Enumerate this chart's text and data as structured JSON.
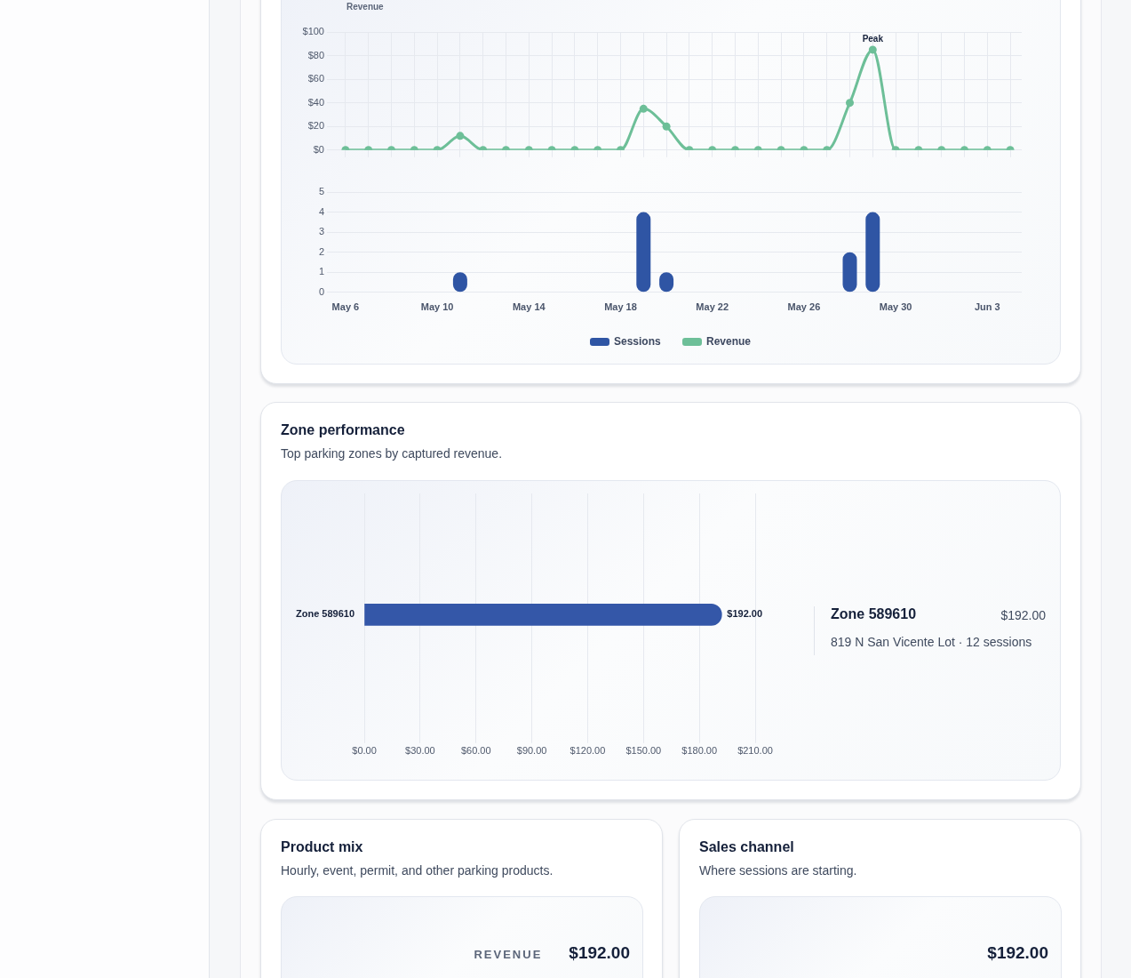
{
  "chart_data": [
    {
      "type": "line",
      "ylabel": "Revenue",
      "categories": [
        null,
        null,
        null,
        null,
        null,
        null,
        null,
        null,
        null,
        null,
        null,
        null,
        null,
        null,
        null,
        null,
        null,
        null,
        null,
        null,
        null,
        null,
        null,
        null,
        null,
        null,
        null,
        null,
        null,
        null
      ],
      "series": [
        {
          "name": "Revenue",
          "color": "#6dbf98",
          "values": [
            0,
            0,
            0,
            0,
            0,
            12,
            0,
            0,
            0,
            0,
            0,
            0,
            0,
            35,
            20,
            0,
            0,
            0,
            0,
            0,
            0,
            0,
            40,
            85,
            0,
            0,
            0,
            0,
            0,
            0
          ]
        }
      ],
      "ylim": [
        0,
        100
      ],
      "yticks": [
        {
          "value": 0,
          "label": "$0"
        },
        {
          "value": 20,
          "label": "$20"
        },
        {
          "value": 40,
          "label": "$40"
        },
        {
          "value": 60,
          "label": "$60"
        },
        {
          "value": 80,
          "label": "$80"
        },
        {
          "value": 100,
          "label": "$100"
        }
      ],
      "grid": true,
      "legend": "bottom",
      "marker": "circle",
      "annotations": [
        "Peak"
      ]
    },
    {
      "type": "bar",
      "categories": [
        "May 6",
        null,
        null,
        null,
        "May 10",
        null,
        null,
        null,
        "May 14",
        null,
        null,
        null,
        "May 18",
        null,
        null,
        null,
        "May 22",
        null,
        null,
        null,
        "May 26",
        null,
        null,
        null,
        "May 30",
        null,
        null,
        null,
        "Jun 3",
        null
      ],
      "series": [
        {
          "name": "Sessions",
          "color": "#2f55a4",
          "values": [
            0,
            0,
            0,
            0,
            0,
            1,
            0,
            0,
            0,
            0,
            0,
            0,
            0,
            4,
            1,
            0,
            0,
            0,
            0,
            0,
            0,
            0,
            2,
            4,
            0,
            0,
            0,
            0,
            0,
            0
          ]
        }
      ],
      "ylim": [
        0,
        5
      ],
      "yticks": [
        0,
        1,
        2,
        3,
        4,
        5
      ],
      "grid": "y",
      "legend": "bottom"
    },
    {
      "type": "bar",
      "orientation": "horizontal",
      "title": "Zone performance",
      "subtitle": "Top parking zones by captured revenue.",
      "categories": [
        "Zone 589610"
      ],
      "values": [
        192
      ],
      "color": "#3457a8",
      "xlim": [
        0,
        210
      ],
      "xticks": [
        {
          "value": 0,
          "label": "$0.00"
        },
        {
          "value": 30,
          "label": "$30.00"
        },
        {
          "value": 60,
          "label": "$60.00"
        },
        {
          "value": 90,
          "label": "$90.00"
        },
        {
          "value": 120,
          "label": "$120.00"
        },
        {
          "value": 150,
          "label": "$150.00"
        },
        {
          "value": 180,
          "label": "$180.00"
        },
        {
          "value": 210,
          "label": "$210.00"
        }
      ],
      "grid": "x",
      "value_labels": [
        "$192.00"
      ],
      "annotations": [
        "Zone 589610",
        "$192.00",
        "819 N San Vicente Lot · 12 sessions"
      ]
    },
    {
      "type": "other",
      "title": "Product mix",
      "subtitle": "Hourly, event, permit, and other parking products.",
      "annotations": [
        "REVENUE",
        "$192.00"
      ]
    },
    {
      "type": "other",
      "title": "Sales channel",
      "subtitle": "Where sessions are starting.",
      "annotations": [
        "$192.00"
      ]
    }
  ]
}
